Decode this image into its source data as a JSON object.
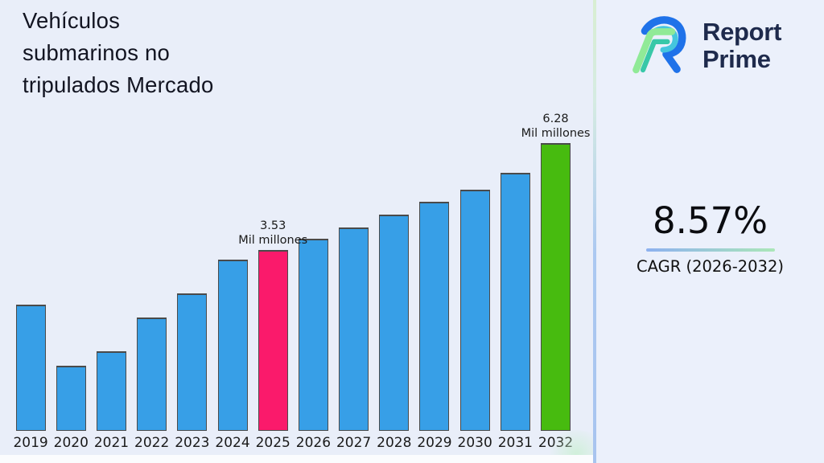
{
  "header": {
    "title": "Vehículos submarinos no tripulados Mercado",
    "title_lines": [
      "Vehículos",
      "submarinos no",
      "tripulados Mercado"
    ]
  },
  "brand": {
    "name": "Report Prime",
    "word1": "Report",
    "word2": "Prime",
    "logo_icon": "report-prime-monogram",
    "logo_colors": {
      "navy": "#1e2a4c",
      "blue": "#1f72e9",
      "cyan": "#45c6dd",
      "green": "#90ea97",
      "teal": "#38c8a8"
    }
  },
  "stats": {
    "cagr_value": "8.57%",
    "cagr_label": "CAGR (2026-2032)",
    "underline_gradient": [
      "#8db1f0",
      "#abe7b8"
    ]
  },
  "chart_data": {
    "type": "bar",
    "title": "Vehículos submarinos no tripulados Mercado",
    "unit": "Mil millones",
    "categories": [
      "2019",
      "2020",
      "2021",
      "2022",
      "2023",
      "2024",
      "2025",
      "2026",
      "2027",
      "2028",
      "2029",
      "2030",
      "2031",
      "2032"
    ],
    "values": [
      2.14,
      0.58,
      0.95,
      1.81,
      2.43,
      3.29,
      3.53,
      3.83,
      4.12,
      4.44,
      4.77,
      5.08,
      5.51,
      6.28
    ],
    "bar_color": "#379fe7",
    "bar_border_color": "#4a4a4a",
    "highlights": {
      "2025": "#fa1a6b",
      "2032": "#47bb0f"
    },
    "annotations": [
      {
        "category": "2025",
        "lines": [
          "3.53",
          "Mil millones"
        ]
      },
      {
        "category": "2032",
        "lines": [
          "6.28",
          "Mil millones"
        ]
      }
    ],
    "xlabel": "",
    "ylabel": "",
    "ylim": [
      0,
      6.6
    ],
    "grid": false,
    "legend": "none"
  },
  "page": {
    "background": "#e9eef9",
    "right_background": "#ebf0fb",
    "divider_colors": [
      "#d8eed2",
      "#d5ebe2",
      "#abc8f1"
    ],
    "bottom_strip": "#fbfcfe"
  }
}
